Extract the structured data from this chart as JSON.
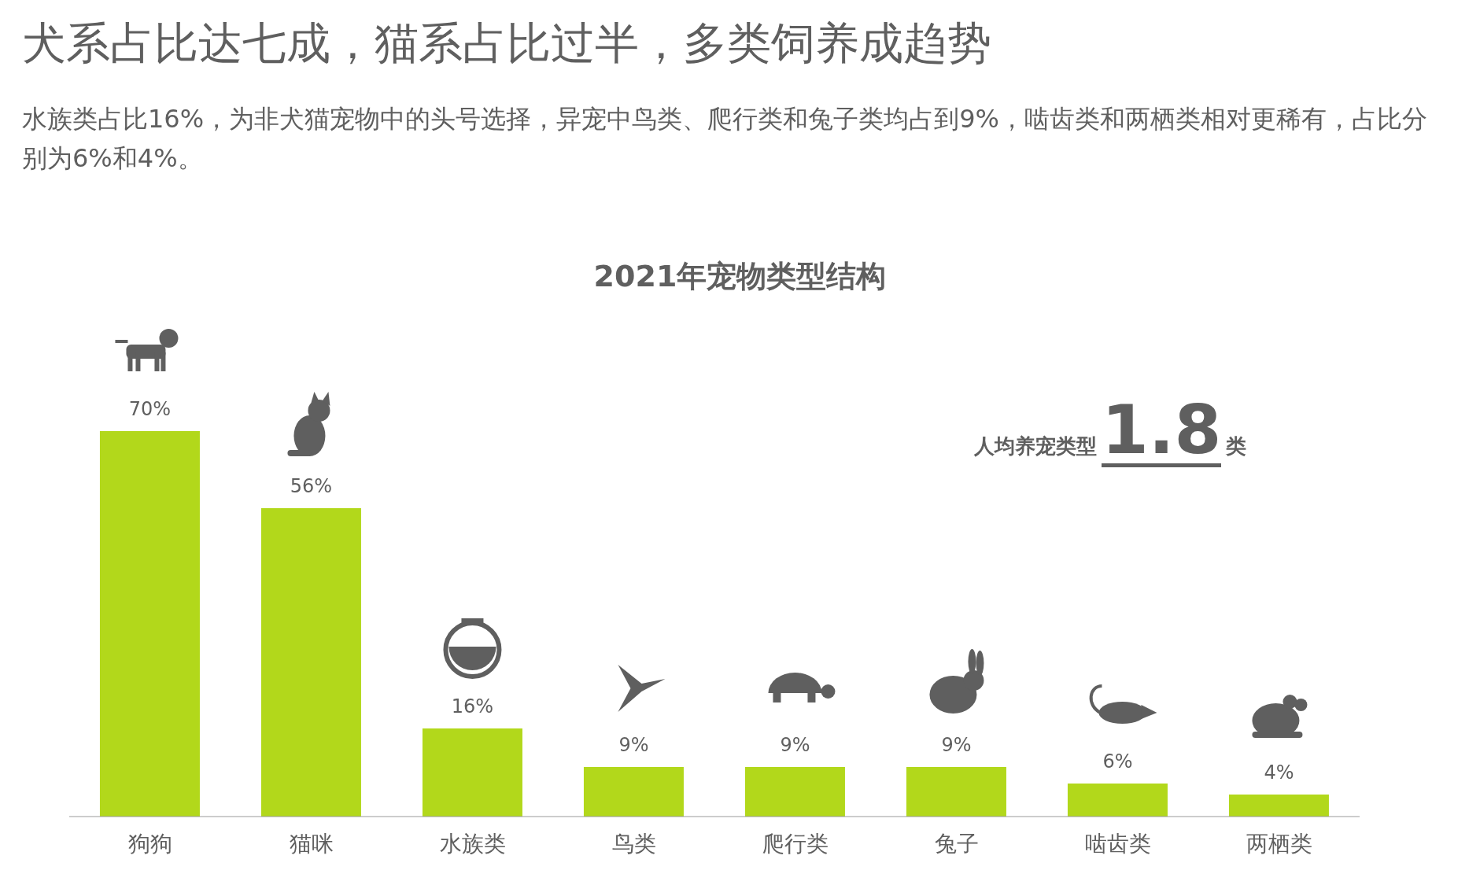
{
  "chart_data": {
    "type": "bar",
    "title": "犬系占比达七成，猫系占比过半，多类饲养成趋势",
    "subtitle": "水族类占比16%，为非犬猫宠物中的头号选择，异宠中鸟类、爬行类和兔子类均占到9%，啮齿类和两栖类相对更稀有，占比分别为6%和4%。",
    "annotations": [
      "2021年宠物类型结构",
      "人均养宠类型",
      "1.8",
      "类"
    ],
    "categories": [
      "狗狗",
      "猫咪",
      "水族类",
      "鸟类",
      "爬行类",
      "兔子",
      "啮齿类",
      "两栖类"
    ],
    "values": [
      70,
      56,
      16,
      9,
      9,
      9,
      6,
      4
    ],
    "color": "#b2d81b",
    "value_labels": [
      "70%",
      "56%",
      "16%",
      "9%",
      "9%",
      "9%",
      "6%",
      "4%"
    ]
  }
}
